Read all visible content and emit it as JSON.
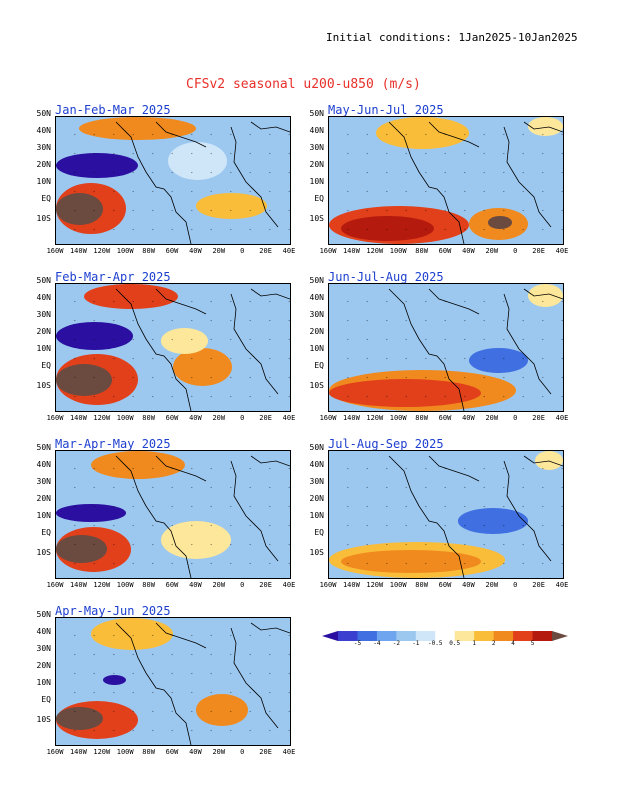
{
  "header": {
    "initial_conditions": "Initial conditions: 1Jan2025-10Jan2025",
    "title": "CFSv2 seasonal u200-u850 (m/s)"
  },
  "lat_labels": [
    "50N",
    "40N",
    "30N",
    "20N",
    "10N",
    "EQ",
    "10S"
  ],
  "lon_labels": [
    "160W",
    "140W",
    "120W",
    "100W",
    "80W",
    "60W",
    "40W",
    "20W",
    "0",
    "20E",
    "40E"
  ],
  "panels": [
    {
      "id": "jfm",
      "title": "Jan-Feb-Mar 2025"
    },
    {
      "id": "fma",
      "title": "Feb-Mar-Apr 2025"
    },
    {
      "id": "mam",
      "title": "Mar-Apr-May 2025"
    },
    {
      "id": "amj",
      "title": "Apr-May-Jun 2025"
    },
    {
      "id": "mjj",
      "title": "May-Jun-Jul 2025"
    },
    {
      "id": "jja",
      "title": "Jun-Jul-Aug 2025"
    },
    {
      "id": "jas",
      "title": "Jul-Aug-Sep 2025"
    }
  ],
  "colorbar": {
    "ticks": [
      "-5",
      "-4",
      "-2",
      "-1",
      "-0.5",
      "0.5",
      "1",
      "2",
      "4",
      "5"
    ],
    "colors": [
      "#2a0fa0",
      "#3a3fd0",
      "#3f6fe0",
      "#6fa4ee",
      "#9cc8f0",
      "#cfe6f8",
      "#ffffff",
      "#fde79a",
      "#f9bd3a",
      "#f08a1e",
      "#e2401a",
      "#b51a0e",
      "#6b4a40"
    ]
  }
}
